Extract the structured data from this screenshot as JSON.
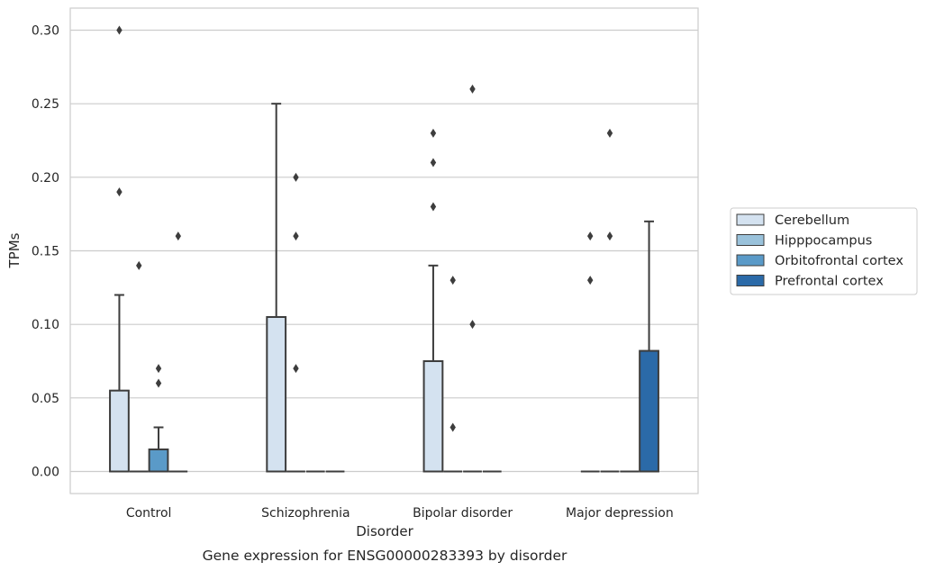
{
  "chart_data": {
    "type": "box",
    "caption": "Gene expression for ENSG00000283393 by disorder",
    "xlabel": "Disorder",
    "ylabel": "TPMs",
    "ylim": [
      -0.015,
      0.315
    ],
    "yticks": [
      0.0,
      0.05,
      0.1,
      0.15,
      0.2,
      0.25,
      0.3
    ],
    "ytick_labels": [
      "0.00",
      "0.05",
      "0.10",
      "0.15",
      "0.20",
      "0.25",
      "0.30"
    ],
    "grid": "horizontal",
    "legend_position": "right",
    "categories": [
      "Control",
      "Schizophrenia",
      "Bipolar disorder",
      "Major depression"
    ],
    "series": [
      {
        "name": "Cerebellum",
        "color": "#d4e2f0",
        "boxes": [
          {
            "category": "Control",
            "q1": 0.0,
            "median": 0.0,
            "q3": 0.055,
            "whisker_low": 0.0,
            "whisker_high": 0.12,
            "outliers": [
              0.19,
              0.3
            ]
          },
          {
            "category": "Schizophrenia",
            "q1": 0.0,
            "median": 0.0,
            "q3": 0.105,
            "whisker_low": 0.0,
            "whisker_high": 0.25,
            "outliers": []
          },
          {
            "category": "Bipolar disorder",
            "q1": 0.0,
            "median": 0.0,
            "q3": 0.075,
            "whisker_low": 0.0,
            "whisker_high": 0.14,
            "outliers": [
              0.18,
              0.21,
              0.23
            ]
          },
          {
            "category": "Major depression",
            "q1": 0.0,
            "median": 0.0,
            "q3": 0.0,
            "whisker_low": 0.0,
            "whisker_high": 0.0,
            "outliers": [
              0.13,
              0.16
            ]
          }
        ]
      },
      {
        "name": "Hipppocampus",
        "color": "#9ac2db",
        "boxes": [
          {
            "category": "Control",
            "q1": 0.0,
            "median": 0.0,
            "q3": 0.0,
            "whisker_low": 0.0,
            "whisker_high": 0.0,
            "outliers": [
              0.14
            ]
          },
          {
            "category": "Schizophrenia",
            "q1": 0.0,
            "median": 0.0,
            "q3": 0.0,
            "whisker_low": 0.0,
            "whisker_high": 0.0,
            "outliers": [
              0.07,
              0.16,
              0.2
            ]
          },
          {
            "category": "Bipolar disorder",
            "q1": 0.0,
            "median": 0.0,
            "q3": 0.0,
            "whisker_low": 0.0,
            "whisker_high": 0.0,
            "outliers": [
              0.03,
              0.13
            ]
          },
          {
            "category": "Major depression",
            "q1": 0.0,
            "median": 0.0,
            "q3": 0.0,
            "whisker_low": 0.0,
            "whisker_high": 0.0,
            "outliers": [
              0.16,
              0.23
            ]
          }
        ]
      },
      {
        "name": "Orbitofrontal cortex",
        "color": "#5a9ac8",
        "boxes": [
          {
            "category": "Control",
            "q1": 0.0,
            "median": 0.0,
            "q3": 0.015,
            "whisker_low": 0.0,
            "whisker_high": 0.03,
            "outliers": [
              0.06,
              0.07
            ]
          },
          {
            "category": "Schizophrenia",
            "q1": 0.0,
            "median": 0.0,
            "q3": 0.0,
            "whisker_low": 0.0,
            "whisker_high": 0.0,
            "outliers": []
          },
          {
            "category": "Bipolar disorder",
            "q1": 0.0,
            "median": 0.0,
            "q3": 0.0,
            "whisker_low": 0.0,
            "whisker_high": 0.0,
            "outliers": [
              0.1,
              0.26
            ]
          },
          {
            "category": "Major depression",
            "q1": 0.0,
            "median": 0.0,
            "q3": 0.0,
            "whisker_low": 0.0,
            "whisker_high": 0.0,
            "outliers": []
          }
        ]
      },
      {
        "name": "Prefrontal cortex",
        "color": "#2b6aa8",
        "boxes": [
          {
            "category": "Control",
            "q1": 0.0,
            "median": 0.0,
            "q3": 0.0,
            "whisker_low": 0.0,
            "whisker_high": 0.0,
            "outliers": [
              0.16
            ]
          },
          {
            "category": "Schizophrenia",
            "q1": 0.0,
            "median": 0.0,
            "q3": 0.0,
            "whisker_low": 0.0,
            "whisker_high": 0.0,
            "outliers": []
          },
          {
            "category": "Bipolar disorder",
            "q1": 0.0,
            "median": 0.0,
            "q3": 0.0,
            "whisker_low": 0.0,
            "whisker_high": 0.0,
            "outliers": []
          },
          {
            "category": "Major depression",
            "q1": 0.0,
            "median": 0.0,
            "q3": 0.082,
            "whisker_low": 0.0,
            "whisker_high": 0.17,
            "outliers": []
          }
        ]
      }
    ]
  }
}
